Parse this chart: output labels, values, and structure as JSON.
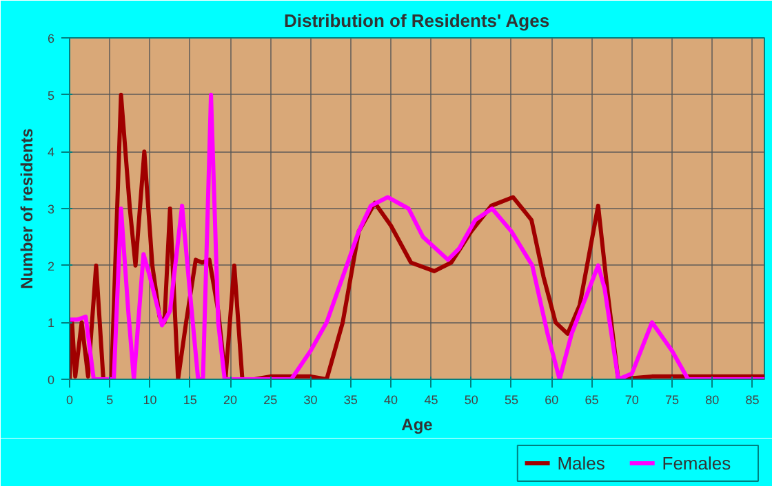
{
  "chart_data": {
    "type": "line",
    "title": "Distribution of Residents' Ages",
    "xlabel": "Age",
    "ylabel": "Number of residents",
    "xlim": [
      0,
      86.5
    ],
    "xticks": [
      0,
      5,
      10,
      15,
      20,
      25,
      30,
      35,
      40,
      45,
      50,
      55,
      60,
      65,
      70,
      75,
      80,
      85
    ],
    "ylim": [
      0,
      6
    ],
    "yticks": [
      0,
      1,
      2,
      3,
      4,
      5,
      6
    ],
    "grid": true,
    "legend": "bottom right",
    "series": [
      {
        "name": "Males",
        "color": "#a00000",
        "x": [
          0,
          0.3,
          0.7,
          1.5,
          2.3,
          3.3,
          4.2,
          5.2,
          6.4,
          7.5,
          8.2,
          9.3,
          10.3,
          11.2,
          11.8,
          12.5,
          13.5,
          14.5,
          15.7,
          16.5,
          17.4,
          18.5,
          19.4,
          20.5,
          21.5,
          23,
          25,
          30,
          32,
          34,
          36,
          38,
          40,
          42.5,
          45.4,
          47.5,
          50,
          52.5,
          55.2,
          57.5,
          59,
          60.5,
          62,
          63.5,
          65.8,
          67,
          68.3,
          72.5,
          86.5
        ],
        "values": [
          0,
          1,
          0.05,
          1,
          0.05,
          2,
          0,
          0,
          5,
          3,
          2,
          4,
          2,
          1.1,
          1,
          3,
          0,
          1,
          2.1,
          2.05,
          2.1,
          1.2,
          0,
          2,
          0,
          0,
          0.05,
          0.05,
          0,
          1,
          2.6,
          3.1,
          2.7,
          2.05,
          1.9,
          2.05,
          2.6,
          3.05,
          3.2,
          2.8,
          1.8,
          1,
          0.8,
          1.3,
          3.05,
          1.5,
          0,
          0.05,
          0.05
        ]
      },
      {
        "name": "Females",
        "color": "#ff00ff",
        "x": [
          0,
          1,
          2,
          3,
          4,
          5.5,
          6.4,
          7.3,
          8,
          9.2,
          10,
          11.5,
          12.5,
          14,
          15,
          16,
          16.6,
          17.6,
          18.5,
          19.3,
          22,
          27.6,
          30,
          32,
          34,
          36,
          37.5,
          39.6,
          42.2,
          44,
          47.1,
          48.5,
          50.5,
          52.6,
          55,
          57.6,
          59.5,
          61,
          62.5,
          65.8,
          66.6,
          68.3,
          70,
          72.5,
          75,
          77,
          86.5
        ],
        "values": [
          1.05,
          1.05,
          1.1,
          0,
          0,
          0,
          3,
          1.2,
          0,
          2.2,
          1.8,
          0.95,
          1.2,
          3.05,
          1.5,
          0,
          0,
          5,
          1,
          0,
          0,
          0,
          0.5,
          1,
          1.8,
          2.6,
          3.05,
          3.2,
          3,
          2.5,
          2.1,
          2.3,
          2.8,
          3,
          2.6,
          2,
          0.8,
          0,
          0.8,
          2,
          1.6,
          0,
          0.1,
          1,
          0.5,
          0,
          0
        ]
      }
    ]
  }
}
